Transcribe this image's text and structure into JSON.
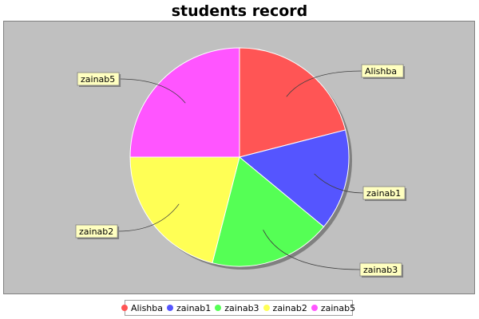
{
  "chart_data": {
    "type": "pie",
    "title": "students record",
    "categories": [
      "Alishba",
      "zainab1",
      "zainab3",
      "zainab2",
      "zainab5"
    ],
    "values": [
      21,
      15,
      18,
      21,
      25
    ],
    "colors": [
      "#ff5555",
      "#5555ff",
      "#55ff55",
      "#ffff55",
      "#ff55ff"
    ],
    "legend": "bottom",
    "labels_shown": true
  }
}
